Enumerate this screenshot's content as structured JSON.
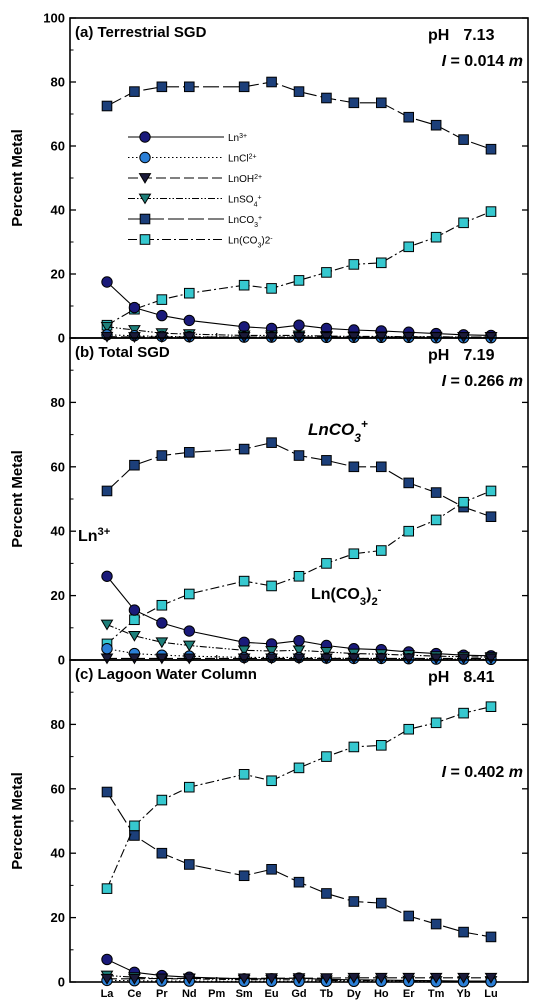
{
  "chart_data": [
    {
      "type": "line",
      "panel_label": "(a) Terrestrial SGD",
      "ph_label": "pH",
      "ph_value": "7.13",
      "ionic_label": "I",
      "ionic_eq": " = 0.014 ",
      "ionic_unit": "m",
      "ylabel": "Percent Metal",
      "ylim": [
        0,
        100
      ],
      "yticks": [
        "0",
        "20",
        "40",
        "60",
        "80",
        "100"
      ],
      "categories": [
        "La",
        "Ce",
        "Pr",
        "Nd",
        "Pm",
        "Sm",
        "Eu",
        "Gd",
        "Tb",
        "Dy",
        "Ho",
        "Er",
        "Tm",
        "Yb",
        "Lu"
      ],
      "legend": [
        {
          "key": "ln3",
          "base": "Ln",
          "sup": "3+"
        },
        {
          "key": "lncl",
          "base": "LnCl",
          "sup": "2+"
        },
        {
          "key": "lnoh",
          "base": "LnOH",
          "sup": "2+"
        },
        {
          "key": "lnso4",
          "base": "LnSO",
          "sub": "4",
          "sup": "+"
        },
        {
          "key": "lnco3",
          "base": "LnCO",
          "sub": "3",
          "sup": "+"
        },
        {
          "key": "lnco32",
          "base": "Ln(CO",
          "sub": "3",
          "mid": ")2",
          "sup": "-"
        }
      ],
      "series": [
        {
          "key": "lnco3",
          "values": [
            72.5,
            77,
            78.5,
            78.5,
            null,
            78.5,
            80,
            77,
            75,
            73.5,
            73.5,
            69,
            66.5,
            62,
            59
          ]
        },
        {
          "key": "lnco32",
          "values": [
            4,
            9,
            12,
            14,
            null,
            16.5,
            15.5,
            18,
            20.5,
            23,
            23.5,
            28.5,
            31.5,
            36,
            39.5
          ]
        },
        {
          "key": "ln3",
          "values": [
            17.5,
            9.5,
            7,
            5.5,
            null,
            3.5,
            3,
            4,
            3,
            2.5,
            2.2,
            1.8,
            1.4,
            1,
            0.8
          ]
        },
        {
          "key": "lnso4",
          "values": [
            3.5,
            2.5,
            1.5,
            1.2,
            null,
            0.8,
            0.8,
            0.8,
            0.6,
            0.5,
            0.5,
            0.4,
            0.4,
            0.3,
            0.3
          ]
        },
        {
          "key": "lncl",
          "values": [
            1,
            0.7,
            0.5,
            0.4,
            null,
            0.3,
            0.3,
            0.3,
            0.2,
            0.2,
            0.2,
            0.2,
            0.1,
            0.1,
            0.1
          ]
        },
        {
          "key": "lnoh",
          "values": [
            0.4,
            0.3,
            0.3,
            0.3,
            null,
            0.3,
            0.3,
            0.3,
            0.3,
            0.3,
            0.3,
            0.3,
            0.3,
            0.3,
            0.3
          ]
        }
      ]
    },
    {
      "type": "line",
      "panel_label": "(b) Total SGD",
      "ph_label": "pH",
      "ph_value": "7.19",
      "ionic_label": "I",
      "ionic_eq": " = 0.266 ",
      "ionic_unit": "m",
      "ylabel": "Percent Metal",
      "ylim": [
        0,
        100
      ],
      "yticks": [
        "0",
        "20",
        "40",
        "60",
        "80"
      ],
      "categories": [
        "La",
        "Ce",
        "Pr",
        "Nd",
        "Pm",
        "Sm",
        "Eu",
        "Gd",
        "Tb",
        "Dy",
        "Ho",
        "Er",
        "Tm",
        "Yb",
        "Lu"
      ],
      "annotations": [
        {
          "key": "lnco3",
          "base": "LnCO",
          "sub": "3",
          "sup": "+"
        },
        {
          "key": "ln3",
          "base": "Ln",
          "sup": "3+"
        },
        {
          "key": "lnco32",
          "base": "Ln(CO",
          "sub": "3",
          "mid": ")",
          "sub2": "2",
          "sup": "-"
        }
      ],
      "series": [
        {
          "key": "lnco3",
          "values": [
            52.5,
            60.5,
            63.5,
            64.5,
            null,
            65.5,
            67.5,
            63.5,
            62,
            60,
            60,
            55,
            52,
            47.5,
            44.5
          ]
        },
        {
          "key": "lnco32",
          "values": [
            5,
            12.5,
            17,
            20.5,
            null,
            24.5,
            23,
            26,
            30,
            33,
            34,
            40,
            43.5,
            49,
            52.5
          ]
        },
        {
          "key": "ln3",
          "values": [
            26,
            15.5,
            11.5,
            9,
            null,
            5.5,
            5,
            6,
            4.5,
            3.5,
            3.2,
            2.5,
            2,
            1.5,
            1.3
          ]
        },
        {
          "key": "lnso4",
          "values": [
            11,
            7.5,
            5.5,
            4.5,
            null,
            3,
            2.8,
            3,
            2.5,
            2,
            1.8,
            1.5,
            1.2,
            1,
            0.9
          ]
        },
        {
          "key": "lncl",
          "values": [
            3.5,
            2,
            1.5,
            1.2,
            null,
            0.8,
            0.8,
            0.8,
            0.6,
            0.5,
            0.5,
            0.4,
            0.3,
            0.3,
            0.2
          ]
        },
        {
          "key": "lnoh",
          "values": [
            0.5,
            0.5,
            0.5,
            0.5,
            null,
            0.5,
            0.5,
            0.5,
            0.5,
            0.5,
            0.5,
            0.5,
            0.5,
            0.5,
            0.5
          ]
        }
      ]
    },
    {
      "type": "line",
      "panel_label": "(c) Lagoon Water Column",
      "ph_label": "pH",
      "ph_value": "8.41",
      "ionic_label": "I",
      "ionic_eq": " = 0.402 ",
      "ionic_unit": "m",
      "ylabel": "Percent Metal",
      "ylim": [
        0,
        100
      ],
      "yticks": [
        "0",
        "20",
        "40",
        "60",
        "80"
      ],
      "categories": [
        "La",
        "Ce",
        "Pr",
        "Nd",
        "Pm",
        "Sm",
        "Eu",
        "Gd",
        "Tb",
        "Dy",
        "Ho",
        "Er",
        "Tm",
        "Yb",
        "Lu"
      ],
      "series": [
        {
          "key": "lnco3",
          "values": [
            59,
            45.5,
            40,
            36.5,
            null,
            33,
            35,
            31,
            27.5,
            25,
            24.5,
            20.5,
            18,
            15.5,
            14
          ]
        },
        {
          "key": "lnco32",
          "values": [
            29,
            48.5,
            56.5,
            60.5,
            null,
            64.5,
            62.5,
            66.5,
            70,
            73,
            73.5,
            78.5,
            80.5,
            83.5,
            85.5
          ]
        },
        {
          "key": "ln3",
          "values": [
            7,
            3,
            2,
            1.5,
            null,
            1,
            1,
            1.2,
            0.8,
            0.7,
            0.6,
            0.5,
            0.4,
            0.3,
            0.3
          ]
        },
        {
          "key": "lnso4",
          "values": [
            2,
            1.5,
            1,
            1,
            null,
            0.7,
            0.7,
            0.7,
            0.5,
            0.5,
            0.4,
            0.4,
            0.3,
            0.3,
            0.3
          ]
        },
        {
          "key": "lncl",
          "values": [
            0.5,
            0.4,
            0.3,
            0.3,
            null,
            0.2,
            0.2,
            0.2,
            0.2,
            0.2,
            0.2,
            0.2,
            0.1,
            0.1,
            0.1
          ]
        },
        {
          "key": "lnoh",
          "values": [
            1,
            1,
            1.1,
            1.1,
            null,
            1.1,
            1.2,
            1.2,
            1.2,
            1.3,
            1.3,
            1.3,
            1.3,
            1.3,
            1.3
          ]
        }
      ]
    }
  ],
  "styles": {
    "ln3": {
      "color": "#1a1a7a",
      "marker": "circle",
      "dash": ""
    },
    "lncl": {
      "color": "#2b7fd6",
      "marker": "circle",
      "dash": "1.5,2.5"
    },
    "lnoh": {
      "color": "#1a1a3a",
      "marker": "triangle-down",
      "dash": "10,4"
    },
    "lnso4": {
      "color": "#1e7f7a",
      "marker": "triangle-down",
      "dash": "7,2,1.5,2,1.5,2"
    },
    "lnco3": {
      "color": "#1c3f7a",
      "marker": "square",
      "dash": "16,4"
    },
    "lnco32": {
      "color": "#36c8cf",
      "marker": "square",
      "dash": "9,3,2,3"
    }
  }
}
